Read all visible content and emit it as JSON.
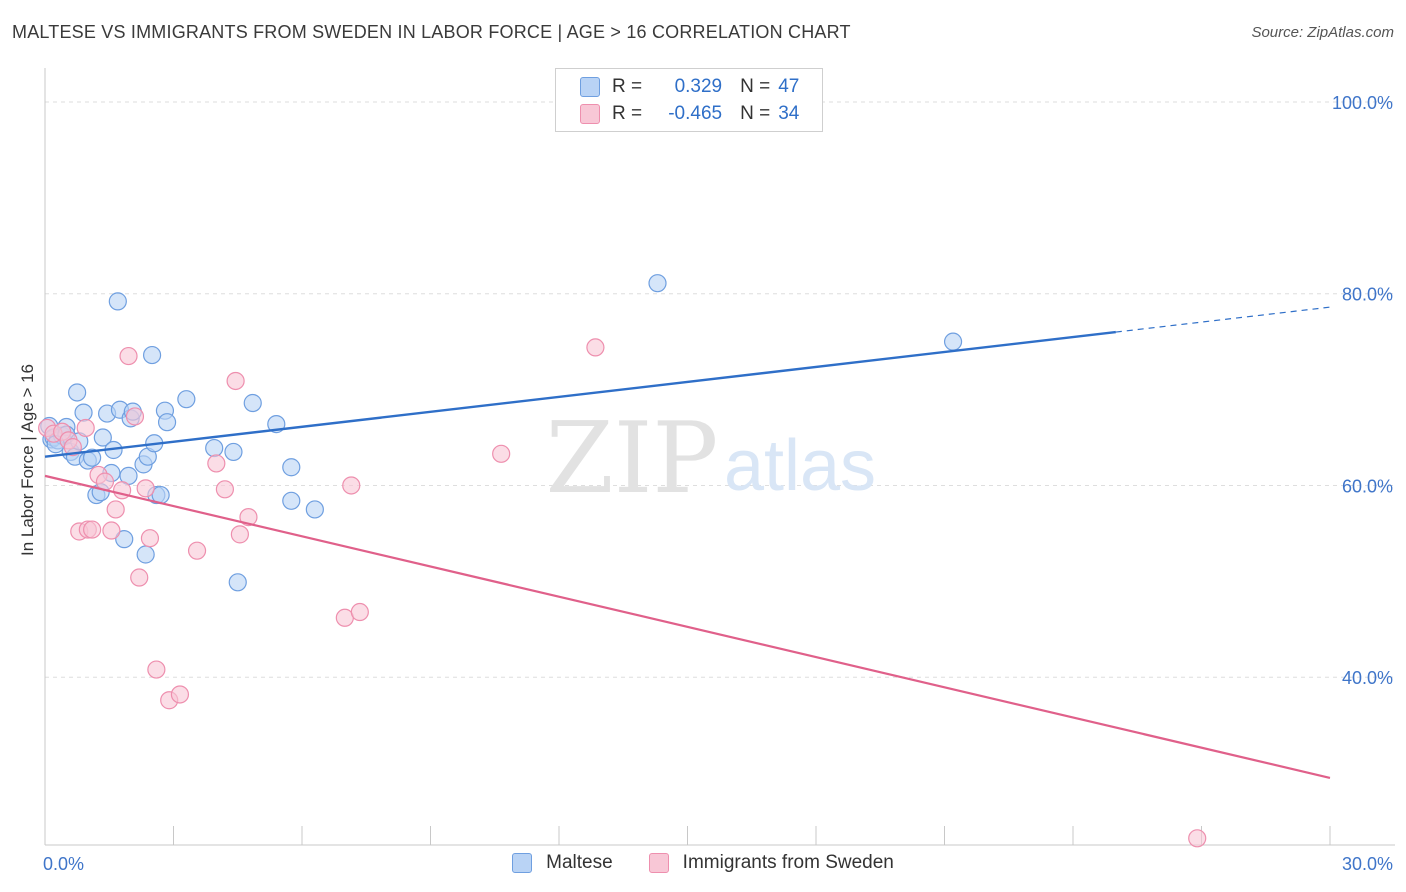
{
  "title": "MALTESE VS IMMIGRANTS FROM SWEDEN IN LABOR FORCE | AGE > 16 CORRELATION CHART",
  "source": "Source: ZipAtlas.com",
  "watermark": {
    "zip": "ZIP",
    "atlas": "atlas"
  },
  "colors": {
    "blue": "#2f6fc8",
    "blue_fill": "#b9d3f5",
    "blue_stroke": "#6f9fe0",
    "pink": "#e0608a",
    "pink_fill": "#f8c7d6",
    "pink_stroke": "#ee8fae",
    "grid": "#dedede",
    "axis_label": "#3f75c9"
  },
  "legend_top": {
    "rows": [
      {
        "r_label": "R =",
        "r_value": "0.329",
        "n_label": "N =",
        "n_value": "47"
      },
      {
        "r_label": "R =",
        "r_value": "-0.465",
        "n_label": "N =",
        "n_value": "34"
      }
    ]
  },
  "legend_bottom": {
    "series1": "Maltese",
    "series2": "Immigrants from Sweden"
  },
  "chart_data": {
    "type": "scatter",
    "title": "MALTESE VS IMMIGRANTS FROM SWEDEN IN LABOR FORCE | AGE > 16 CORRELATION CHART",
    "xlabel": "",
    "ylabel": "In Labor Force | Age > 16",
    "xlim": [
      0,
      30
    ],
    "ylim": [
      22.5,
      102.5
    ],
    "x_tick_labels": [
      {
        "value": 0,
        "label": "0.0%"
      },
      {
        "value": 30,
        "label": "30.0%"
      }
    ],
    "y_tick_labels": [
      {
        "value": 100,
        "label": "100.0%"
      },
      {
        "value": 80,
        "label": "80.0%"
      },
      {
        "value": 60,
        "label": "60.0%"
      },
      {
        "value": 40,
        "label": "40.0%"
      }
    ],
    "grid": true,
    "legend_position": "bottom",
    "series": [
      {
        "name": "Maltese",
        "color": "#6f9fe0",
        "points": [
          [
            0.1,
            66.2
          ],
          [
            0.15,
            64.8
          ],
          [
            0.2,
            65.0
          ],
          [
            0.3,
            64.7
          ],
          [
            0.4,
            65.2
          ],
          [
            0.5,
            66.1
          ],
          [
            0.5,
            65.3
          ],
          [
            0.6,
            63.5
          ],
          [
            0.7,
            63.0
          ],
          [
            0.75,
            69.7
          ],
          [
            0.8,
            64.6
          ],
          [
            0.9,
            67.6
          ],
          [
            1.0,
            62.6
          ],
          [
            1.1,
            62.9
          ],
          [
            1.2,
            59.0
          ],
          [
            1.3,
            59.3
          ],
          [
            1.35,
            65.0
          ],
          [
            1.45,
            67.5
          ],
          [
            1.55,
            61.3
          ],
          [
            1.6,
            63.7
          ],
          [
            1.7,
            79.2
          ],
          [
            1.75,
            67.9
          ],
          [
            1.85,
            54.4
          ],
          [
            1.95,
            61.0
          ],
          [
            2.0,
            67.0
          ],
          [
            2.05,
            67.7
          ],
          [
            2.3,
            62.2
          ],
          [
            2.35,
            52.8
          ],
          [
            2.4,
            63.0
          ],
          [
            2.5,
            73.6
          ],
          [
            2.55,
            64.4
          ],
          [
            2.6,
            59.0
          ],
          [
            2.7,
            59.0
          ],
          [
            2.8,
            67.8
          ],
          [
            2.85,
            66.6
          ],
          [
            3.3,
            69.0
          ],
          [
            3.95,
            63.9
          ],
          [
            4.4,
            63.5
          ],
          [
            4.85,
            68.6
          ],
          [
            5.4,
            66.4
          ],
          [
            5.75,
            61.9
          ],
          [
            5.75,
            58.4
          ],
          [
            6.3,
            57.5
          ],
          [
            4.5,
            49.9
          ],
          [
            14.3,
            81.1
          ],
          [
            21.2,
            75.0
          ],
          [
            0.25,
            64.3
          ]
        ],
        "trend": {
          "x": [
            0,
            25
          ],
          "y": [
            63.0,
            76.0
          ]
        },
        "trend_dashed": {
          "x": [
            25,
            30
          ],
          "y": [
            76.0,
            78.6
          ]
        }
      },
      {
        "name": "Immigrants from Sweden",
        "color": "#ee8fae",
        "points": [
          [
            0.05,
            66.0
          ],
          [
            0.2,
            65.4
          ],
          [
            0.4,
            65.6
          ],
          [
            0.55,
            64.7
          ],
          [
            0.65,
            64.0
          ],
          [
            0.8,
            55.2
          ],
          [
            0.95,
            66.0
          ],
          [
            1.0,
            55.4
          ],
          [
            1.1,
            55.4
          ],
          [
            1.25,
            61.1
          ],
          [
            1.4,
            60.4
          ],
          [
            1.55,
            55.3
          ],
          [
            1.65,
            57.5
          ],
          [
            1.8,
            59.5
          ],
          [
            1.95,
            73.5
          ],
          [
            2.1,
            67.2
          ],
          [
            2.2,
            50.4
          ],
          [
            2.35,
            59.7
          ],
          [
            2.45,
            54.5
          ],
          [
            2.6,
            40.8
          ],
          [
            2.9,
            37.6
          ],
          [
            3.15,
            38.2
          ],
          [
            3.55,
            53.2
          ],
          [
            4.0,
            62.3
          ],
          [
            4.2,
            59.6
          ],
          [
            4.45,
            70.9
          ],
          [
            4.55,
            54.9
          ],
          [
            4.75,
            56.7
          ],
          [
            7.0,
            46.2
          ],
          [
            7.15,
            60.0
          ],
          [
            7.35,
            46.8
          ],
          [
            10.65,
            63.3
          ],
          [
            12.85,
            74.4
          ],
          [
            26.9,
            23.2
          ]
        ],
        "trend": {
          "x": [
            0,
            30
          ],
          "y": [
            61.0,
            29.5
          ]
        }
      }
    ]
  }
}
